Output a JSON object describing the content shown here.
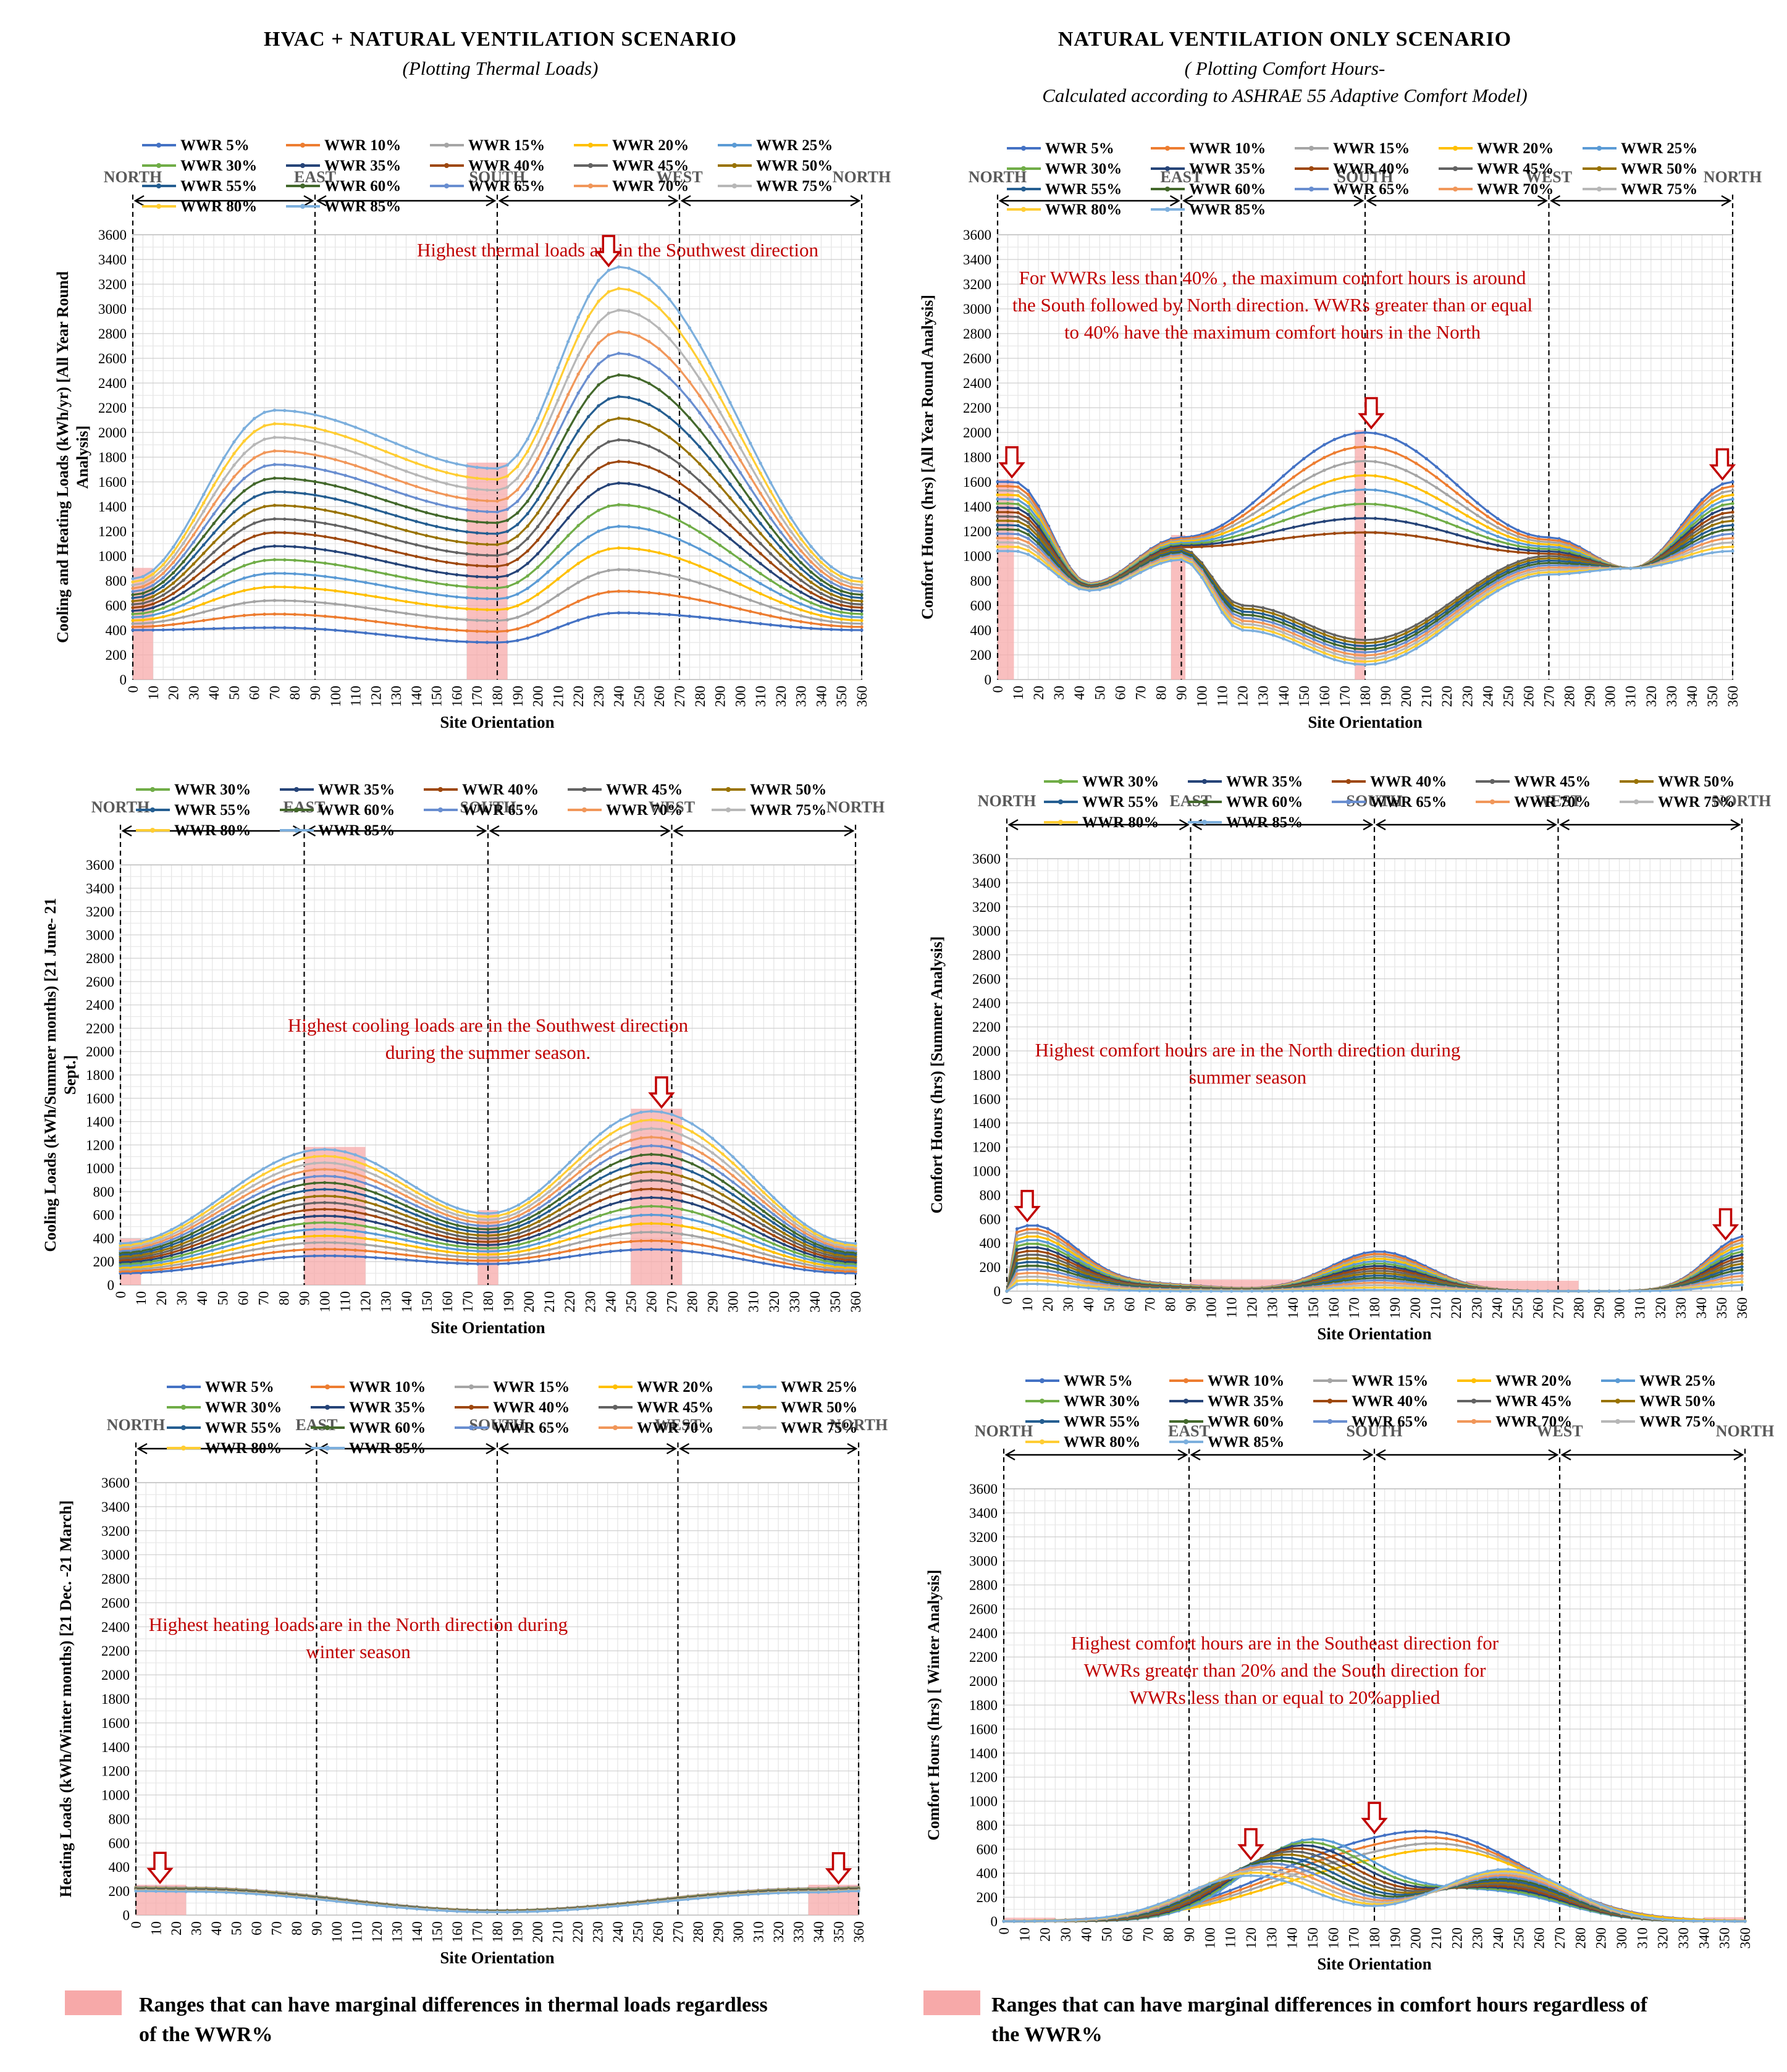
{
  "left_column": {
    "title": "HVAC + NATURAL VENTILATION SCENARIO",
    "subtitle": "(Plotting Thermal Loads)"
  },
  "right_column": {
    "title": "NATURAL VENTILATION ONLY SCENARIO",
    "subtitle_line1": "( Plotting Comfort Hours-",
    "subtitle_line2": "Calculated according to ASHRAE 55 Adaptive Comfort Model)"
  },
  "legend_names": {
    "5": "WWR 5%",
    "10": "WWR 10%",
    "15": "WWR 15%",
    "20": "WWR 20%",
    "25": "WWR 25%",
    "30": "WWR 30%",
    "35": "WWR 35%",
    "40": "WWR 40%",
    "45": "WWR 45%",
    "50": "WWR 50%",
    "55": "WWR 55%",
    "60": "WWR 60%",
    "65": "WWR 65%",
    "70": "WWR 70%",
    "75": "WWR 75%",
    "80": "WWR 80%",
    "85": "WWR 85%"
  },
  "series_colors": {
    "5": "#4472c4",
    "10": "#ed7d31",
    "15": "#a5a5a5",
    "20": "#ffc000",
    "25": "#5b9bd5",
    "30": "#70ad47",
    "35": "#264478",
    "40": "#9e480e",
    "45": "#636363",
    "50": "#997300",
    "55": "#255e91",
    "60": "#43682b",
    "65": "#698ed0",
    "70": "#f1975a",
    "75": "#b7b7b7",
    "80": "#ffcd33",
    "85": "#7cafdd"
  },
  "highlight_color": "#f7a9a9",
  "arrow_color": "#c00000",
  "annotation_color": "#c00000",
  "footer_left": {
    "line1": "Ranges that can have marginal differences in thermal loads  regardless",
    "line2": "of the WWR%"
  },
  "footer_right": {
    "line1": "Ranges that can have marginal differences in comfort hours regardless of",
    "line2": "the WWR%"
  },
  "chart_data": [
    {
      "id": "hvac_annual",
      "type": "line",
      "ylabel_lines": [
        "Cooling and Heating Loads (kWh/yr) [All Year Round",
        "Analysis]"
      ],
      "xlabel": "Site Orientation",
      "ylim": [
        0,
        3600
      ],
      "ytick_step": 200,
      "xlim": [
        0,
        360
      ],
      "xtick_step": 10,
      "directions": [
        "NORTH",
        "EAST",
        "SOUTH",
        "WEST",
        "NORTH"
      ],
      "legend_rows": [
        [
          "5",
          "10",
          "15",
          "20",
          "25"
        ],
        [
          "30",
          "35",
          "40",
          "45",
          "50"
        ],
        [
          "55",
          "60",
          "65",
          "70",
          "75"
        ],
        [
          "80",
          "85"
        ]
      ],
      "annotation_lines": [
        "Highest thermal loads are in the Southwest direction"
      ],
      "model": {
        "kind": "annual",
        "base": [
          400,
          550,
          270,
          540
        ],
        "step": [
          28,
          58,
          155,
          190
        ]
      },
      "shaded_ranges": [
        [
          0,
          10
        ],
        [
          165,
          185
        ]
      ],
      "arrows": [
        235
      ]
    },
    {
      "id": "hvac_summer",
      "type": "line",
      "ylabel_lines": [
        "Cooling Loads (kWh/Summer months) [21 June- 21",
        "Sept.]"
      ],
      "xlabel": "Site Orientation",
      "ylim": [
        0,
        3600
      ],
      "ytick_step": 200,
      "xlim": [
        0,
        360
      ],
      "xtick_step": 10,
      "directions": [
        "NORTH",
        "EAST",
        "SOUTH",
        "WEST",
        "NORTH"
      ],
      "legend_rows": [
        [
          "30",
          "35",
          "40",
          "45",
          "50"
        ],
        [
          "55",
          "60",
          "65",
          "70",
          "75"
        ],
        [
          "80",
          "85"
        ]
      ],
      "annotation_lines": [
        "Highest cooling loads are in the Southwest direction",
        "during the summer season."
      ],
      "model": {
        "kind": "summer",
        "base": [
          110,
          260,
          200,
          310
        ],
        "step": [
          17,
          57,
          26,
          74
        ]
      },
      "shaded_ranges": [
        [
          0,
          10
        ],
        [
          90,
          120
        ],
        [
          175,
          185
        ],
        [
          250,
          275
        ]
      ],
      "arrows": [
        265
      ]
    },
    {
      "id": "hvac_winter",
      "type": "line",
      "ylabel_lines": [
        "Heating Loads (kWh/Winter months) [21 Dec. -21 March]"
      ],
      "xlabel": "Site Orientation",
      "ylim": [
        0,
        3600
      ],
      "ytick_step": 200,
      "xlim": [
        0,
        360
      ],
      "xtick_step": 10,
      "directions": [
        "NORTH",
        "EAST",
        "SOUTH",
        "WEST",
        "NORTH"
      ],
      "legend_rows": [
        [
          "5",
          "10",
          "15",
          "20",
          "25"
        ],
        [
          "30",
          "35",
          "40",
          "45",
          "50"
        ],
        [
          "55",
          "60",
          "65",
          "70",
          "75"
        ],
        [
          "80",
          "85"
        ]
      ],
      "annotation_lines": [
        "Highest heating loads are in the North direction during",
        "winter season"
      ],
      "model": {
        "kind": "winter",
        "base": [
          230,
          60,
          40,
          90
        ],
        "step": [
          -2,
          -3,
          -1,
          -2
        ]
      },
      "shaded_ranges": [
        [
          0,
          25
        ],
        [
          335,
          360
        ]
      ],
      "arrows": [
        12,
        350
      ]
    },
    {
      "id": "nv_annual",
      "type": "line",
      "ylabel_lines": [
        "Comfort Hours (hrs) [All Year Round Analysis]"
      ],
      "xlabel": "Site Orientation",
      "ylim": [
        0,
        3600
      ],
      "ytick_step": 200,
      "xlim": [
        0,
        360
      ],
      "xtick_step": 10,
      "directions": [
        "NORTH",
        "EAST",
        "SOUTH",
        "WEST",
        "NORTH"
      ],
      "legend_rows": [
        [
          "5",
          "10",
          "15",
          "20",
          "25"
        ],
        [
          "30",
          "35",
          "40",
          "45",
          "50"
        ],
        [
          "55",
          "60",
          "65",
          "70",
          "75"
        ],
        [
          "80",
          "85"
        ]
      ],
      "annotation_lines": [
        "For WWRs less than 40% , the maximum comfort hours is around",
        "the South followed by North direction. WWRs greater than or equal",
        "to 40% have the maximum comfort hours in the North"
      ],
      "model": {
        "kind": "nv_annual",
        "base": [
          1600,
          1150,
          2000,
          1150
        ],
        "end": [
          1050,
          980,
          150,
          800
        ]
      },
      "shaded_ranges": [
        [
          0,
          8
        ],
        [
          85,
          92
        ],
        [
          175,
          180
        ]
      ],
      "arrows": [
        7,
        183,
        355
      ]
    },
    {
      "id": "nv_summer",
      "type": "line",
      "ylabel_lines": [
        "Comfort Hours (hrs) [Summer  Analysis]"
      ],
      "xlabel": "Site Orientation",
      "ylim": [
        0,
        3600
      ],
      "ytick_step": 200,
      "xlim": [
        0,
        360
      ],
      "xtick_step": 10,
      "directions": [
        "NORTH",
        "EAST",
        "SOUTH",
        "WEST",
        "NORTH"
      ],
      "legend_rows": [
        [
          "30",
          "35",
          "40",
          "45",
          "50"
        ],
        [
          "55",
          "60",
          "65",
          "70",
          "75"
        ],
        [
          "80",
          "85"
        ]
      ],
      "annotation_lines": [
        "Highest comfort hours are in the North direction during",
        "summer season"
      ],
      "model": {
        "kind": "nv_summer",
        "peakN": [
          540,
          60
        ],
        "peakS": [
          330,
          10
        ]
      },
      "shaded_ranges": [
        [
          90,
          140
        ],
        [
          225,
          280
        ]
      ],
      "arrows": [
        10,
        352
      ]
    },
    {
      "id": "nv_winter",
      "type": "line",
      "ylabel_lines": [
        "Comfort Hours (hrs) [ Winter Analysis]"
      ],
      "xlabel": "Site Orientation",
      "ylim": [
        0,
        3600
      ],
      "ytick_step": 200,
      "xlim": [
        0,
        360
      ],
      "xtick_step": 10,
      "directions": [
        "NORTH",
        "EAST",
        "SOUTH",
        "WEST",
        "NORTH"
      ],
      "legend_rows": [
        [
          "5",
          "10",
          "15",
          "20",
          "25"
        ],
        [
          "30",
          "35",
          "40",
          "45",
          "50"
        ],
        [
          "55",
          "60",
          "65",
          "70",
          "75"
        ],
        [
          "80",
          "85"
        ]
      ],
      "annotation_lines": [
        "Highest  comfort hours are in the Southeast direction for",
        "WWRs greater than 20% and the South direction for",
        "WWRs less than or equal to 20%applied"
      ],
      "model": {
        "kind": "nv_winter"
      },
      "shaded_ranges": [
        [
          0,
          25
        ],
        [
          340,
          360
        ]
      ],
      "arrows": [
        120,
        180
      ]
    }
  ]
}
